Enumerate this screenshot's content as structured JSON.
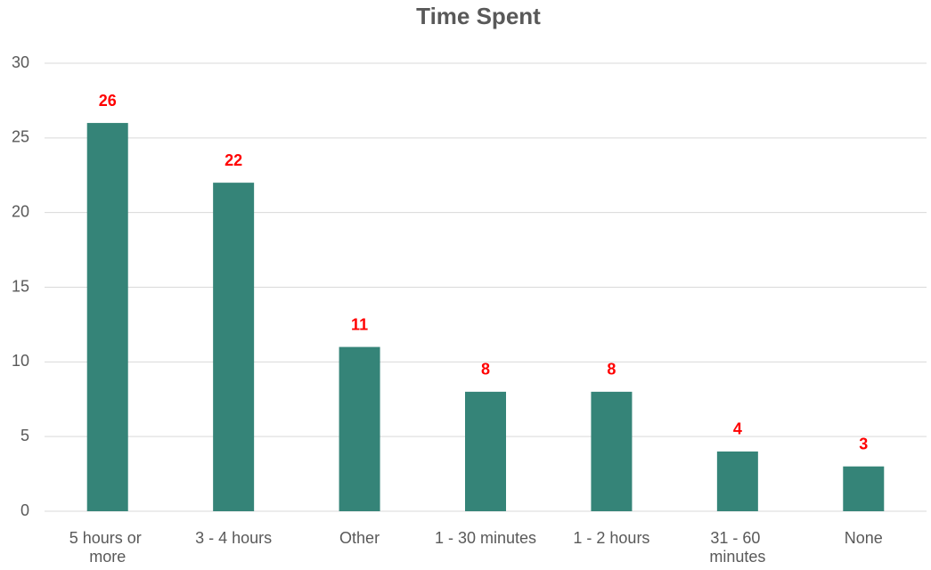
{
  "chart_data": {
    "type": "bar",
    "title": "Time Spent",
    "categories": [
      "5 hours or more",
      "3 - 4 hours",
      "Other",
      "1 - 30 minutes",
      "1 - 2 hours",
      "31 - 60 minutes",
      "None"
    ],
    "values": [
      26,
      22,
      11,
      8,
      8,
      4,
      3
    ],
    "color": "#358478",
    "value_label_color": "#ff0000",
    "ylim": [
      0,
      30
    ],
    "yticks": [
      0,
      5,
      10,
      15,
      20,
      25,
      30
    ],
    "grid": true
  }
}
